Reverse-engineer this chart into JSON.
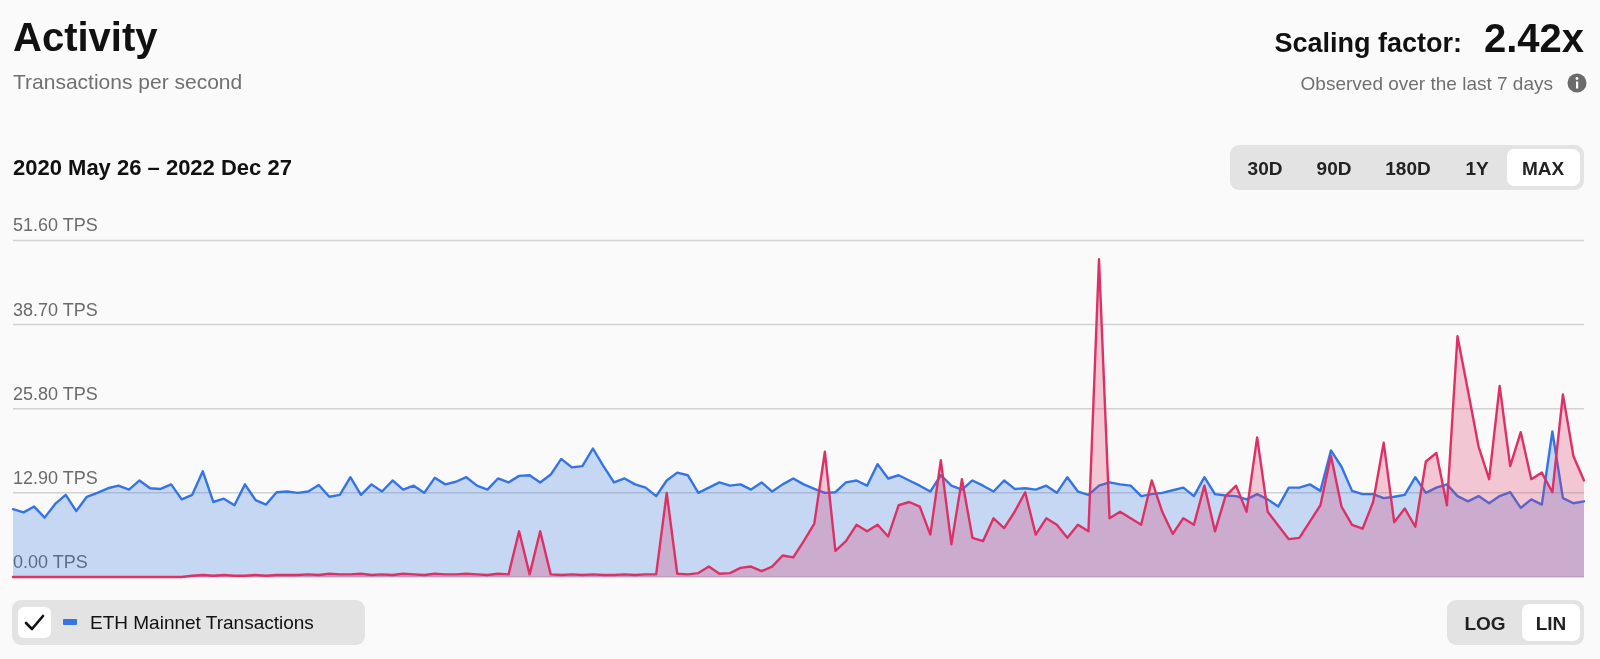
{
  "chart_data": {
    "type": "area",
    "title": "Activity",
    "subtitle": "Transactions per second",
    "annotations": [
      "Scaling factor:",
      "2.42x",
      "Observed over the last 7 days",
      "2020 May 26 – 2022 Dec 27",
      "30D",
      "90D",
      "180D",
      "1Y",
      "MAX",
      "LOG",
      "LIN"
    ],
    "categories": [
      null,
      null,
      null,
      null,
      null,
      null,
      null,
      null,
      null,
      null,
      null,
      null,
      null,
      null,
      null,
      null,
      null,
      null,
      null,
      null,
      null,
      null,
      null,
      null,
      null,
      null,
      null,
      null,
      null,
      null,
      null,
      null,
      null,
      null,
      null,
      null,
      null,
      null,
      null,
      null,
      null,
      null,
      null,
      null,
      null,
      null,
      null,
      null,
      null,
      null,
      null,
      null,
      null,
      null,
      null,
      null,
      null,
      null,
      null,
      null,
      null,
      null,
      null,
      null,
      null,
      null,
      null,
      null,
      null,
      null,
      null,
      null,
      null,
      null,
      null,
      null,
      null,
      null,
      null,
      null,
      null,
      null,
      null,
      null,
      null,
      null,
      null,
      null,
      null,
      null,
      null,
      null,
      null,
      null,
      null,
      null,
      null,
      null,
      null,
      null,
      null,
      null,
      null,
      null,
      null,
      null,
      null,
      null,
      null,
      null,
      null,
      null,
      null,
      null,
      null,
      null,
      null,
      null,
      null,
      null,
      null,
      null,
      null,
      null,
      null,
      null,
      null,
      null,
      null,
      null,
      null,
      null,
      null,
      null,
      null,
      null,
      null,
      null,
      null,
      null,
      null,
      null,
      null,
      null,
      null,
      null,
      null,
      null,
      null,
      null
    ],
    "series": [
      {
        "name": "ETH Mainnet Transactions",
        "color": "#3474e4",
        "values": [
          10.4,
          9.9,
          10.8,
          9.1,
          11.2,
          12.6,
          10.1,
          12.3,
          12.9,
          13.6,
          14.0,
          13.4,
          14.8,
          13.6,
          13.5,
          14.2,
          11.9,
          12.6,
          16.2,
          11.5,
          12.0,
          11.0,
          14.2,
          11.8,
          11.1,
          13.0,
          13.1,
          12.9,
          13.1,
          14.1,
          12.3,
          12.6,
          15.3,
          12.6,
          14.2,
          13.1,
          14.8,
          13.4,
          14.0,
          12.9,
          15.2,
          14.2,
          14.6,
          15.3,
          14.0,
          13.4,
          15.1,
          14.5,
          15.5,
          15.6,
          14.5,
          15.7,
          18.1,
          16.8,
          17.0,
          19.7,
          17.0,
          14.5,
          15.1,
          14.2,
          13.7,
          12.4,
          14.8,
          16.0,
          15.6,
          12.9,
          13.7,
          14.5,
          14.0,
          14.2,
          13.4,
          14.5,
          13.1,
          14.2,
          15.1,
          14.2,
          13.5,
          12.9,
          13.0,
          14.5,
          14.8,
          14.0,
          17.3,
          15.1,
          15.6,
          14.8,
          14.0,
          13.1,
          15.6,
          14.0,
          13.4,
          14.8,
          14.0,
          13.1,
          14.8,
          13.5,
          13.6,
          13.4,
          14.0,
          12.9,
          15.3,
          13.1,
          12.6,
          14.0,
          14.5,
          14.2,
          14.0,
          12.4,
          12.7,
          12.9,
          13.3,
          13.7,
          12.4,
          15.3,
          12.7,
          12.5,
          12.4,
          11.9,
          12.7,
          11.9,
          10.8,
          13.7,
          13.7,
          14.2,
          13.2,
          19.4,
          16.9,
          13.2,
          12.7,
          12.7,
          12.1,
          12.3,
          12.6,
          15.3,
          12.9,
          13.7,
          14.2,
          12.4,
          11.6,
          12.4,
          11.3,
          12.4,
          13.0,
          10.6,
          11.9,
          11.1,
          22.3,
          12.1,
          11.3,
          11.6
        ]
      },
      {
        "color": "#dd3166",
        "values": [
          0,
          0,
          0,
          0,
          0,
          0,
          0,
          0,
          0,
          0,
          0,
          0,
          0,
          0,
          0,
          0,
          0,
          0.2,
          0.3,
          0.2,
          0.3,
          0.2,
          0.2,
          0.3,
          0.2,
          0.3,
          0.3,
          0.3,
          0.4,
          0.3,
          0.5,
          0.4,
          0.4,
          0.5,
          0.3,
          0.4,
          0.3,
          0.5,
          0.4,
          0.3,
          0.5,
          0.4,
          0.4,
          0.5,
          0.4,
          0.3,
          0.5,
          0.4,
          7.0,
          0.4,
          7.0,
          0.4,
          0.3,
          0.4,
          0.3,
          0.4,
          0.3,
          0.3,
          0.4,
          0.3,
          0.4,
          0.4,
          12.9,
          0.5,
          0.4,
          0.6,
          1.6,
          0.5,
          0.6,
          1.4,
          1.6,
          0.9,
          1.6,
          3.3,
          3.0,
          5.5,
          8.2,
          19.2,
          4.0,
          5.5,
          8.0,
          7.0,
          8.0,
          6.2,
          11.0,
          11.5,
          10.8,
          6.5,
          17.9,
          5.0,
          15.0,
          6.0,
          5.5,
          9.0,
          7.5,
          10.0,
          13.0,
          6.5,
          9.0,
          8.0,
          6.0,
          8.0,
          7.0,
          48.7,
          9.0,
          10.0,
          9.0,
          8.0,
          14.8,
          10.0,
          6.6,
          9.0,
          8.0,
          14.0,
          7.0,
          12.4,
          14.0,
          10.0,
          21.4,
          10.0,
          7.9,
          5.8,
          6.0,
          8.5,
          11.0,
          18.6,
          10.8,
          8.0,
          7.4,
          11.5,
          20.6,
          8.4,
          10.5,
          7.7,
          17.7,
          19.0,
          11.0,
          36.9,
          28.5,
          20.0,
          15.0,
          29.3,
          17.0,
          22.2,
          15.0,
          16.0,
          13.0,
          28.0,
          18.5,
          14.8
        ]
      }
    ],
    "ylim": [
      0,
      51.6
    ],
    "yticks": [
      {
        "value": 0,
        "label": "0.00 TPS"
      },
      {
        "value": 12.9,
        "label": "12.90 TPS"
      },
      {
        "value": 25.8,
        "label": "25.80 TPS"
      },
      {
        "value": 38.7,
        "label": "38.70 TPS"
      },
      {
        "value": 51.6,
        "label": "51.60 TPS"
      }
    ],
    "grid": "y",
    "legend": "bottom left",
    "line_style": "solid"
  }
}
